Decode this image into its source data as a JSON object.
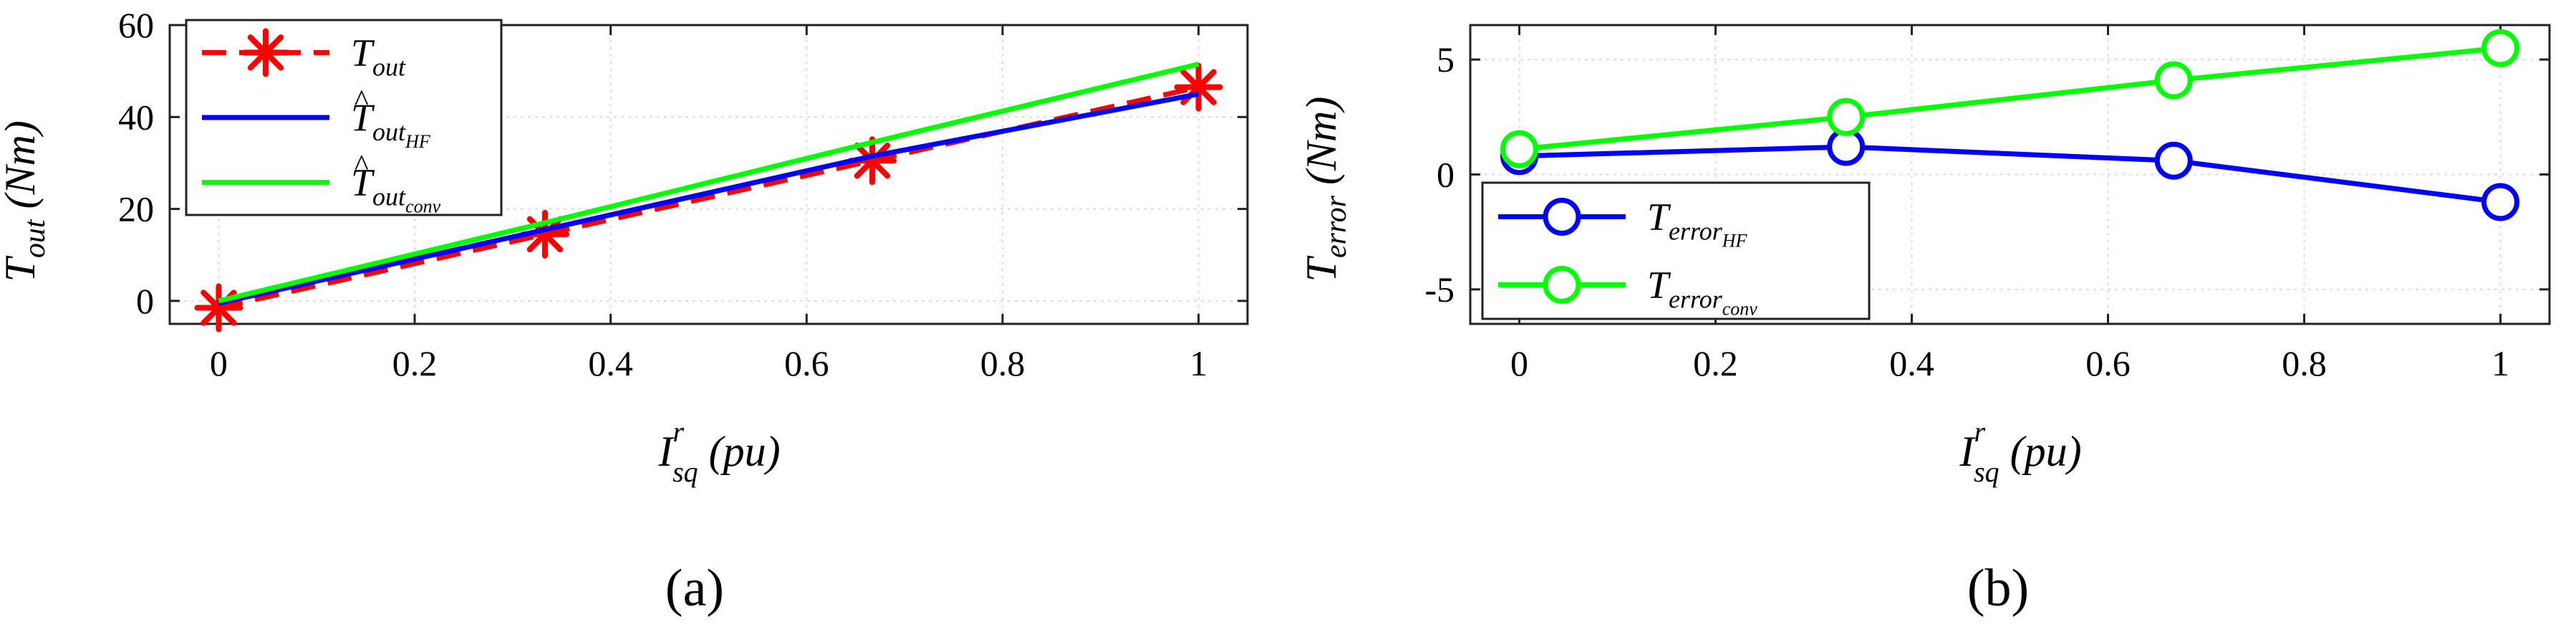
{
  "chart_data": [
    {
      "id": "a",
      "type": "line",
      "caption": "(a)",
      "x": [
        0,
        0.333,
        0.667,
        1
      ],
      "xlim": [
        -0.05,
        1.05
      ],
      "ylim": [
        -5,
        60
      ],
      "xticks": [
        "0",
        "0.2",
        "0.4",
        "0.6",
        "0.8",
        "1"
      ],
      "xtick_values": [
        0,
        0.2,
        0.4,
        0.6,
        0.8,
        1
      ],
      "yticks": [
        "0",
        "20",
        "40",
        "60"
      ],
      "ytick_values": [
        0,
        20,
        40,
        60
      ],
      "xlabel": {
        "main": "I",
        "sup": "r",
        "sub": "sq",
        "unit": "(pu)"
      },
      "ylabel": {
        "main": "T",
        "sub": "out",
        "unit": "(Nm)"
      },
      "grid": true,
      "legend_position": "top-left",
      "series": [
        {
          "name": "T_out",
          "label_main": "T",
          "label_sub": "out",
          "hat": false,
          "color": "#ff0000",
          "style": "dashed",
          "marker": "asterisk",
          "values": [
            -1.5,
            14.5,
            30.5,
            46.5
          ]
        },
        {
          "name": "T_out_HF",
          "label_main": "T",
          "label_sub": "out",
          "label_subsub": "HF",
          "hat": true,
          "color": "#0000ff",
          "style": "solid",
          "marker": "none",
          "values": [
            -0.5,
            15.5,
            31.5,
            45
          ]
        },
        {
          "name": "T_out_conv",
          "label_main": "T",
          "label_sub": "out",
          "label_subsub": "conv",
          "hat": true,
          "color": "#00ff00",
          "style": "solid",
          "marker": "none",
          "values": [
            0,
            17,
            34.5,
            51.5
          ]
        }
      ]
    },
    {
      "id": "b",
      "type": "line",
      "caption": "(b)",
      "x": [
        0,
        0.333,
        0.667,
        1
      ],
      "xlim": [
        -0.05,
        1.05
      ],
      "ylim": [
        -6.5,
        6.5
      ],
      "xticks": [
        "0",
        "0.2",
        "0.4",
        "0.6",
        "0.8",
        "1"
      ],
      "xtick_values": [
        0,
        0.2,
        0.4,
        0.6,
        0.8,
        1
      ],
      "yticks": [
        "-5",
        "0",
        "5"
      ],
      "ytick_values": [
        -5,
        0,
        5
      ],
      "xlabel": {
        "main": "I",
        "sup": "r",
        "sub": "sq",
        "unit": "(pu)"
      },
      "ylabel": {
        "main": "T",
        "sub": "error",
        "unit": "(Nm)"
      },
      "grid": true,
      "legend_position": "bottom-left",
      "series": [
        {
          "name": "T_error_HF",
          "label_main": "T",
          "label_sub": "error",
          "label_subsub": "HF",
          "color": "#0000ff",
          "style": "solid",
          "marker": "circle",
          "values": [
            0.8,
            1.2,
            0.6,
            -1.2
          ]
        },
        {
          "name": "T_error_conv",
          "label_main": "T",
          "label_sub": "error",
          "label_subsub": "conv",
          "color": "#00ff00",
          "style": "solid",
          "marker": "circle",
          "values": [
            1.1,
            2.5,
            4.1,
            5.5
          ]
        }
      ]
    }
  ]
}
